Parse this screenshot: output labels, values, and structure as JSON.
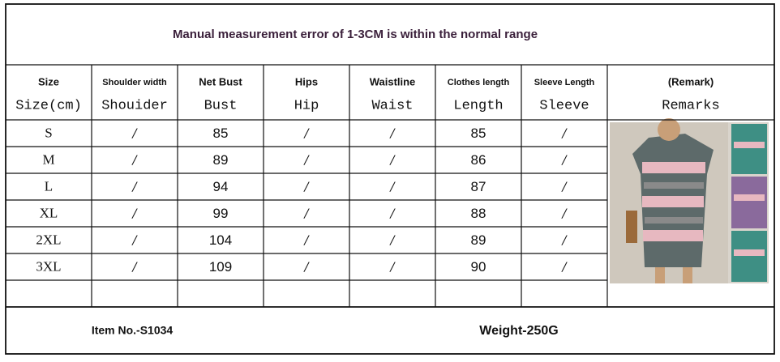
{
  "title": "Manual measurement error of 1-3CM is within the normal range",
  "table": {
    "header": [
      {
        "top": "Size",
        "bottom": "Size(cm)"
      },
      {
        "top": "Shoulder width",
        "bottom": "Shouider"
      },
      {
        "top": "Net Bust",
        "bottom": "Bust"
      },
      {
        "top": "Hips",
        "bottom": "Hip"
      },
      {
        "top": "Waistline",
        "bottom": "Waist"
      },
      {
        "top": "Clothes length",
        "bottom": "Length"
      },
      {
        "top": "Sleeve Length",
        "bottom": "Sleeve"
      },
      {
        "top": "(Remark)",
        "bottom": "Remarks"
      }
    ],
    "rows": [
      [
        "S",
        "/",
        "85",
        "/",
        "/",
        "85",
        "/"
      ],
      [
        "M",
        "/",
        "89",
        "/",
        "/",
        "86",
        "/"
      ],
      [
        "L",
        "/",
        "94",
        "/",
        "/",
        "87",
        "/"
      ],
      [
        "XL",
        "/",
        "99",
        "/",
        "/",
        "88",
        "/"
      ],
      [
        "2XL",
        "/",
        "104",
        "/",
        "/",
        "89",
        "/"
      ],
      [
        "3XL",
        "/",
        "109",
        "/",
        "/",
        "90",
        "/"
      ]
    ]
  },
  "footer": {
    "item": "Item No.-S1034",
    "weight": "Weight-250G"
  }
}
